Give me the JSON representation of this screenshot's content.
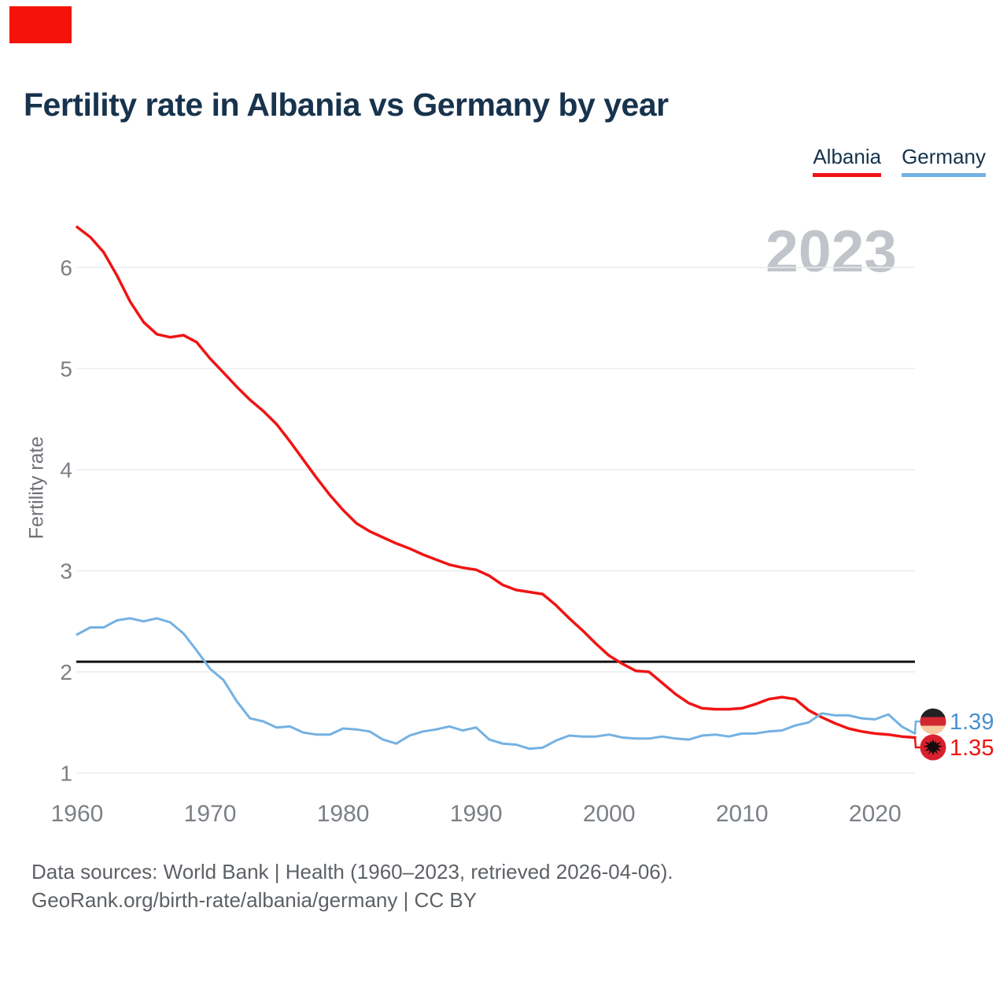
{
  "title": "Fertility rate in Albania vs Germany by year",
  "watermark": "2023",
  "legend": [
    {
      "label": "Albania",
      "color": "#f01414"
    },
    {
      "label": "Germany",
      "color": "#74b1e2"
    }
  ],
  "y_axis": {
    "label": "Fertility rate",
    "ticks": [
      1,
      2,
      3,
      4,
      5,
      6
    ]
  },
  "x_axis": {
    "ticks": [
      1960,
      1970,
      1980,
      1990,
      2000,
      2010,
      2020
    ]
  },
  "footer": {
    "line1": "Data sources: World Bank | Health (1960–2023, retrieved 2026-04-06).",
    "line2": "GeoRank.org/birth-rate/albania/germany | CC BY"
  },
  "colors": {
    "albania_line": "#f01414",
    "germany_line": "#74b1e2",
    "reference_line": "#111111",
    "gridline": "#e9ebee",
    "tick_text": "#7b8086",
    "title_text": "#17334d",
    "watermark_text": "#c1c5cb",
    "germany_value_text": "#4a90d0",
    "albania_value_text": "#ef1410"
  },
  "chart_data": {
    "type": "line",
    "title": "Fertility rate in Albania vs Germany by year",
    "xlabel": "",
    "ylabel": "Fertility rate",
    "x_range": [
      1960,
      2023
    ],
    "ylim": [
      0.85,
      6.55
    ],
    "grid": "horizontal",
    "legend_position": "top-right",
    "reference_line": 2.1,
    "x": [
      1960,
      1961,
      1962,
      1963,
      1964,
      1965,
      1966,
      1967,
      1968,
      1969,
      1970,
      1971,
      1972,
      1973,
      1974,
      1975,
      1976,
      1977,
      1978,
      1979,
      1980,
      1981,
      1982,
      1983,
      1984,
      1985,
      1986,
      1987,
      1988,
      1989,
      1990,
      1991,
      1992,
      1993,
      1994,
      1995,
      1996,
      1997,
      1998,
      1999,
      2000,
      2001,
      2002,
      2003,
      2004,
      2005,
      2006,
      2007,
      2008,
      2009,
      2010,
      2011,
      2012,
      2013,
      2014,
      2015,
      2016,
      2017,
      2018,
      2019,
      2020,
      2021,
      2022,
      2023
    ],
    "series": [
      {
        "name": "Albania",
        "color": "#f01414",
        "end_label": "1.35",
        "end_label_color": "#ef1410",
        "flag": "albania",
        "values": [
          6.4,
          6.3,
          6.15,
          5.92,
          5.66,
          5.46,
          5.34,
          5.31,
          5.33,
          5.26,
          5.1,
          4.96,
          4.82,
          4.69,
          4.58,
          4.45,
          4.28,
          4.1,
          3.92,
          3.75,
          3.6,
          3.47,
          3.39,
          3.33,
          3.27,
          3.22,
          3.16,
          3.11,
          3.06,
          3.03,
          3.01,
          2.95,
          2.86,
          2.81,
          2.79,
          2.77,
          2.66,
          2.53,
          2.41,
          2.28,
          2.16,
          2.08,
          2.01,
          2.0,
          1.89,
          1.78,
          1.69,
          1.64,
          1.63,
          1.63,
          1.64,
          1.68,
          1.73,
          1.75,
          1.73,
          1.62,
          1.55,
          1.49,
          1.44,
          1.41,
          1.39,
          1.38,
          1.36,
          1.35
        ]
      },
      {
        "name": "Germany",
        "color": "#74b1e2",
        "end_label": "1.39",
        "end_label_color": "#4a90d0",
        "flag": "germany",
        "values": [
          2.37,
          2.44,
          2.44,
          2.51,
          2.53,
          2.5,
          2.53,
          2.49,
          2.38,
          2.21,
          2.03,
          1.92,
          1.71,
          1.54,
          1.51,
          1.45,
          1.46,
          1.4,
          1.38,
          1.38,
          1.44,
          1.43,
          1.41,
          1.33,
          1.29,
          1.37,
          1.41,
          1.43,
          1.46,
          1.42,
          1.45,
          1.33,
          1.29,
          1.28,
          1.24,
          1.25,
          1.32,
          1.37,
          1.36,
          1.36,
          1.38,
          1.35,
          1.34,
          1.34,
          1.36,
          1.34,
          1.33,
          1.37,
          1.38,
          1.36,
          1.39,
          1.39,
          1.41,
          1.42,
          1.47,
          1.5,
          1.59,
          1.57,
          1.57,
          1.54,
          1.53,
          1.58,
          1.46,
          1.39
        ]
      }
    ]
  }
}
